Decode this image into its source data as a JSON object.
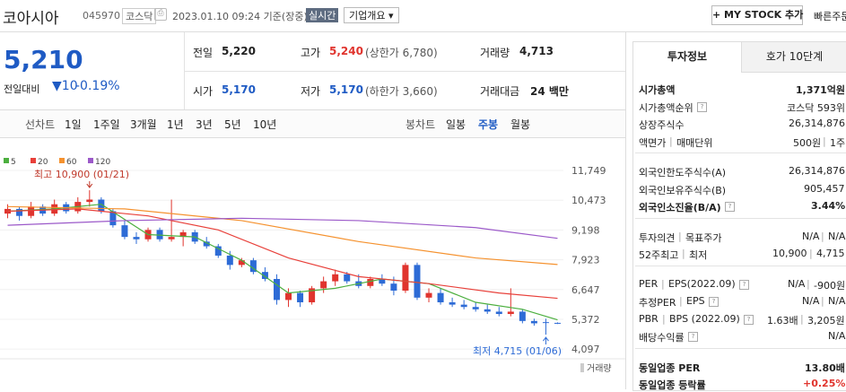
{
  "header": {
    "name": "코아시아",
    "code": "045970",
    "market": "코스닥",
    "timestamp": "2023.01.10 09:24 기준(장중)",
    "realtime": "실시간",
    "company": "기업개요",
    "mystock": "MY STOCK 추가",
    "quick": "빠른주문"
  },
  "quote": {
    "price": "5,210",
    "change_label": "전일대비",
    "change": "10",
    "change_pct": "-0.19%"
  },
  "stats": [
    {
      "label": "전일",
      "value": "5,220"
    },
    {
      "label": "고가",
      "value": "5,240",
      "note": "(상한가 6,780)"
    },
    {
      "label": "거래량",
      "value": "4,713"
    },
    {
      "label": "시가",
      "value": "5,170"
    },
    {
      "label": "저가",
      "value": "5,170",
      "note": "(하한가 3,660)"
    },
    {
      "label": "거래대금",
      "value": "24 백만"
    }
  ],
  "toolbar": {
    "line_chart": "선차트",
    "periods": [
      "1일",
      "1주일",
      "3개월",
      "1년",
      "3년",
      "5년",
      "10년"
    ],
    "candle_chart": "봉차트",
    "candle_periods": [
      "일봉",
      "주봉",
      "월봉"
    ]
  },
  "chart_data": {
    "type": "candlestick",
    "candles": {
      "open": [
        9900,
        10100,
        9800,
        10200,
        9900,
        10300,
        10000,
        10400,
        10500,
        10000,
        9400,
        8900,
        8800,
        9200,
        8800,
        8900,
        9100,
        8700,
        8500,
        8100,
        7700,
        7900,
        7400,
        7100,
        6200,
        6500,
        6100,
        6700,
        7000,
        7300,
        7000,
        6800,
        7100,
        6900,
        6600,
        7700,
        6300,
        6500,
        6100,
        6000,
        5900,
        5800,
        5700,
        5600,
        5700,
        5300,
        5250,
        5220
      ],
      "high": [
        10300,
        10200,
        10400,
        10300,
        10500,
        10400,
        10600,
        10900,
        10600,
        10100,
        9600,
        9100,
        9300,
        9300,
        10500,
        9200,
        9200,
        8900,
        8600,
        8300,
        8000,
        8000,
        7600,
        7300,
        6700,
        6600,
        6800,
        7200,
        7500,
        7400,
        7300,
        7200,
        7300,
        7200,
        7800,
        7800,
        6700,
        6700,
        6300,
        6200,
        6100,
        6000,
        5900,
        6700,
        5800,
        5400,
        5400,
        5240
      ],
      "low": [
        9700,
        9600,
        9700,
        9800,
        9800,
        9900,
        9900,
        10200,
        9900,
        9300,
        8800,
        8600,
        8700,
        8700,
        8700,
        8500,
        8600,
        8400,
        8000,
        7500,
        7600,
        7300,
        7000,
        6000,
        5900,
        5900,
        6000,
        6500,
        6800,
        6900,
        6700,
        6700,
        6800,
        6400,
        6500,
        6200,
        6100,
        6000,
        5900,
        5800,
        5700,
        5600,
        5500,
        5500,
        5200,
        5100,
        4715,
        5170
      ],
      "close": [
        10100,
        9800,
        10200,
        9900,
        10300,
        10000,
        10400,
        10500,
        10000,
        9400,
        8900,
        8800,
        9200,
        8800,
        8900,
        9100,
        8700,
        8500,
        8100,
        7700,
        7900,
        7400,
        7100,
        6200,
        6500,
        6100,
        6700,
        7000,
        7300,
        7000,
        6800,
        7100,
        6900,
        6600,
        7700,
        6300,
        6500,
        6100,
        6000,
        5900,
        5800,
        5700,
        5600,
        5700,
        5300,
        5200,
        5220,
        5210
      ]
    },
    "series": [
      {
        "name": "5",
        "color": "#4caf3f",
        "x": [
          0,
          4,
          8,
          12,
          16,
          20,
          24,
          28,
          32,
          36,
          40,
          44,
          47
        ],
        "values": [
          10000,
          10100,
          10300,
          9000,
          8900,
          7900,
          6500,
          6700,
          7100,
          6900,
          6100,
          5800,
          5350
        ]
      },
      {
        "name": "20",
        "color": "#e8403a",
        "x": [
          0,
          6,
          12,
          18,
          24,
          30,
          36,
          42,
          47
        ],
        "values": [
          10000,
          10100,
          9800,
          9200,
          8000,
          7200,
          6900,
          6500,
          6270
        ]
      },
      {
        "name": "60",
        "color": "#f5922f",
        "x": [
          0,
          10,
          20,
          30,
          40,
          47
        ],
        "values": [
          10200,
          10100,
          9600,
          8700,
          8000,
          7720
        ]
      },
      {
        "name": "120",
        "color": "#9b59c9",
        "x": [
          0,
          10,
          20,
          30,
          40,
          47
        ],
        "values": [
          9400,
          9600,
          9700,
          9600,
          9300,
          8840
        ]
      }
    ],
    "up_color": "#e0342e",
    "down_color": "#2d6bd6",
    "ylim": [
      3680,
      12440
    ],
    "yticks": [
      {
        "value": 11749,
        "label": "11,749"
      },
      {
        "value": 10473,
        "label": "10,473"
      },
      {
        "value": 9198,
        "label": "9,198"
      },
      {
        "value": 7923,
        "label": "7,923"
      },
      {
        "value": 6647,
        "label": "6,647"
      },
      {
        "value": 5372,
        "label": "5,372"
      },
      {
        "value": 4097,
        "label": "4,097"
      }
    ],
    "grid": true,
    "high_label": "최고 10,900 (01/21)",
    "low_label": "최저 4,715 (01/06)",
    "volume_label": "거래량"
  },
  "info": {
    "tabs": [
      "투자정보",
      "호가 10단계"
    ],
    "groups": [
      [
        {
          "labels": [
            "시가총액"
          ],
          "values": [
            "1,371억원"
          ]
        },
        {
          "labels": [
            "시가총액순위"
          ],
          "values": [
            "코스닥 593위"
          ]
        },
        {
          "labels": [
            "상장주식수"
          ],
          "values": [
            "26,314,876"
          ]
        },
        {
          "labels": [
            "액면가",
            "매매단위"
          ],
          "values": [
            "500원",
            "1주"
          ]
        }
      ],
      [
        {
          "labels": [
            "외국인한도주식수(A)"
          ],
          "values": [
            "26,314,876"
          ]
        },
        {
          "labels": [
            "외국인보유주식수(B)"
          ],
          "values": [
            "905,457"
          ]
        },
        {
          "labels": [
            "외국인소진율(B/A)"
          ],
          "values": [
            "3.44%"
          ]
        }
      ],
      [
        {
          "labels": [
            "투자의견",
            "목표주가"
          ],
          "values": [
            "N/A",
            "N/A"
          ]
        },
        {
          "labels": [
            "52주최고",
            "최저"
          ],
          "values": [
            "10,900",
            "4,715"
          ]
        }
      ],
      [
        {
          "labels": [
            "PER",
            "EPS(2022.09)"
          ],
          "values": [
            "N/A",
            "-900원"
          ]
        },
        {
          "labels": [
            "추정PER",
            "EPS"
          ],
          "values": [
            "N/A",
            "N/A"
          ]
        },
        {
          "labels": [
            "PBR",
            "BPS (2022.09)"
          ],
          "values": [
            "1.63배",
            "3,205원"
          ]
        },
        {
          "labels": [
            "배당수익률"
          ],
          "values": [
            "N/A"
          ]
        }
      ],
      [
        {
          "labels": [
            "동일업종 PER"
          ],
          "values": [
            "13.80배"
          ]
        },
        {
          "labels": [
            "동일업종 등락률"
          ],
          "values": [
            "+0.25%"
          ]
        }
      ]
    ]
  }
}
